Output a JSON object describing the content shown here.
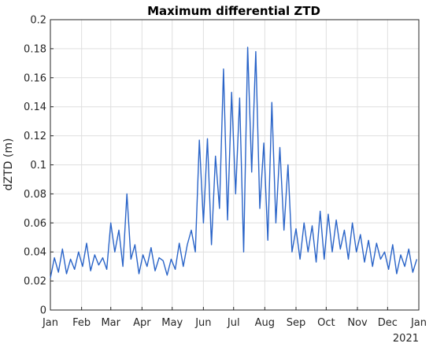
{
  "chart_data": {
    "type": "line",
    "title": "Maximum differential ZTD",
    "xlabel": "",
    "ylabel": "dZTD (m)",
    "xlim": [
      "2020-01-01",
      "2021-01-01"
    ],
    "ylim": [
      0,
      0.2
    ],
    "yticks": [
      0,
      0.02,
      0.04,
      0.06,
      0.08,
      0.1,
      0.12,
      0.14,
      0.16,
      0.18,
      0.2
    ],
    "ytick_labels": [
      "0",
      "0.02",
      "0.04",
      "0.06",
      "0.08",
      "0.1",
      "0.12",
      "0.14",
      "0.16",
      "0.18",
      "0.2"
    ],
    "xticks": [
      "2020-01-01",
      "2020-02-01",
      "2020-03-01",
      "2020-04-01",
      "2020-05-01",
      "2020-06-01",
      "2020-07-01",
      "2020-08-01",
      "2020-09-01",
      "2020-10-01",
      "2020-11-01",
      "2020-12-01",
      "2021-01-01"
    ],
    "xtick_labels": [
      "Jan",
      "Feb",
      "Mar",
      "Apr",
      "May",
      "Jun",
      "Jul",
      "Aug",
      "Sep",
      "Oct",
      "Nov",
      "Dec",
      "Jan"
    ],
    "x_secondary_label": "2021",
    "grid": true,
    "line_color": "#2a64c8",
    "series": [
      {
        "x": [
          "2020-01-01",
          "2020-01-05",
          "2020-01-09",
          "2020-01-13",
          "2020-01-17",
          "2020-01-21",
          "2020-01-25",
          "2020-01-29",
          "2020-02-02",
          "2020-02-06",
          "2020-02-10",
          "2020-02-14",
          "2020-02-18",
          "2020-02-22",
          "2020-02-26",
          "2020-03-01",
          "2020-03-05",
          "2020-03-09",
          "2020-03-13",
          "2020-03-17",
          "2020-03-21",
          "2020-03-25",
          "2020-03-29",
          "2020-04-02",
          "2020-04-06",
          "2020-04-10",
          "2020-04-14",
          "2020-04-18",
          "2020-04-22",
          "2020-04-26",
          "2020-04-30",
          "2020-05-04",
          "2020-05-08",
          "2020-05-12",
          "2020-05-16",
          "2020-05-20",
          "2020-05-24",
          "2020-05-28",
          "2020-06-01",
          "2020-06-05",
          "2020-06-09",
          "2020-06-13",
          "2020-06-17",
          "2020-06-21",
          "2020-06-25",
          "2020-06-29",
          "2020-07-03",
          "2020-07-07",
          "2020-07-11",
          "2020-07-15",
          "2020-07-19",
          "2020-07-23",
          "2020-07-27",
          "2020-07-31",
          "2020-08-04",
          "2020-08-08",
          "2020-08-12",
          "2020-08-16",
          "2020-08-20",
          "2020-08-24",
          "2020-08-28",
          "2020-09-01",
          "2020-09-05",
          "2020-09-09",
          "2020-09-13",
          "2020-09-17",
          "2020-09-21",
          "2020-09-25",
          "2020-09-29",
          "2020-10-03",
          "2020-10-07",
          "2020-10-11",
          "2020-10-15",
          "2020-10-19",
          "2020-10-23",
          "2020-10-27",
          "2020-10-31",
          "2020-11-04",
          "2020-11-08",
          "2020-11-12",
          "2020-11-16",
          "2020-11-20",
          "2020-11-24",
          "2020-11-28",
          "2020-12-02",
          "2020-12-06",
          "2020-12-10",
          "2020-12-14",
          "2020-12-18",
          "2020-12-22",
          "2020-12-26",
          "2020-12-30"
        ],
        "y": [
          0.022,
          0.036,
          0.026,
          0.042,
          0.025,
          0.035,
          0.028,
          0.04,
          0.03,
          0.046,
          0.027,
          0.038,
          0.031,
          0.036,
          0.028,
          0.06,
          0.04,
          0.055,
          0.03,
          0.08,
          0.035,
          0.045,
          0.025,
          0.038,
          0.03,
          0.043,
          0.027,
          0.036,
          0.034,
          0.024,
          0.035,
          0.028,
          0.046,
          0.03,
          0.045,
          0.055,
          0.04,
          0.117,
          0.06,
          0.118,
          0.045,
          0.106,
          0.07,
          0.166,
          0.062,
          0.15,
          0.08,
          0.146,
          0.04,
          0.181,
          0.095,
          0.178,
          0.07,
          0.115,
          0.048,
          0.143,
          0.06,
          0.112,
          0.055,
          0.1,
          0.04,
          0.056,
          0.035,
          0.06,
          0.04,
          0.058,
          0.033,
          0.068,
          0.035,
          0.066,
          0.04,
          0.062,
          0.042,
          0.055,
          0.035,
          0.06,
          0.04,
          0.052,
          0.033,
          0.048,
          0.03,
          0.046,
          0.035,
          0.04,
          0.028,
          0.045,
          0.025,
          0.038,
          0.03,
          0.042,
          0.026,
          0.035
        ]
      }
    ]
  }
}
